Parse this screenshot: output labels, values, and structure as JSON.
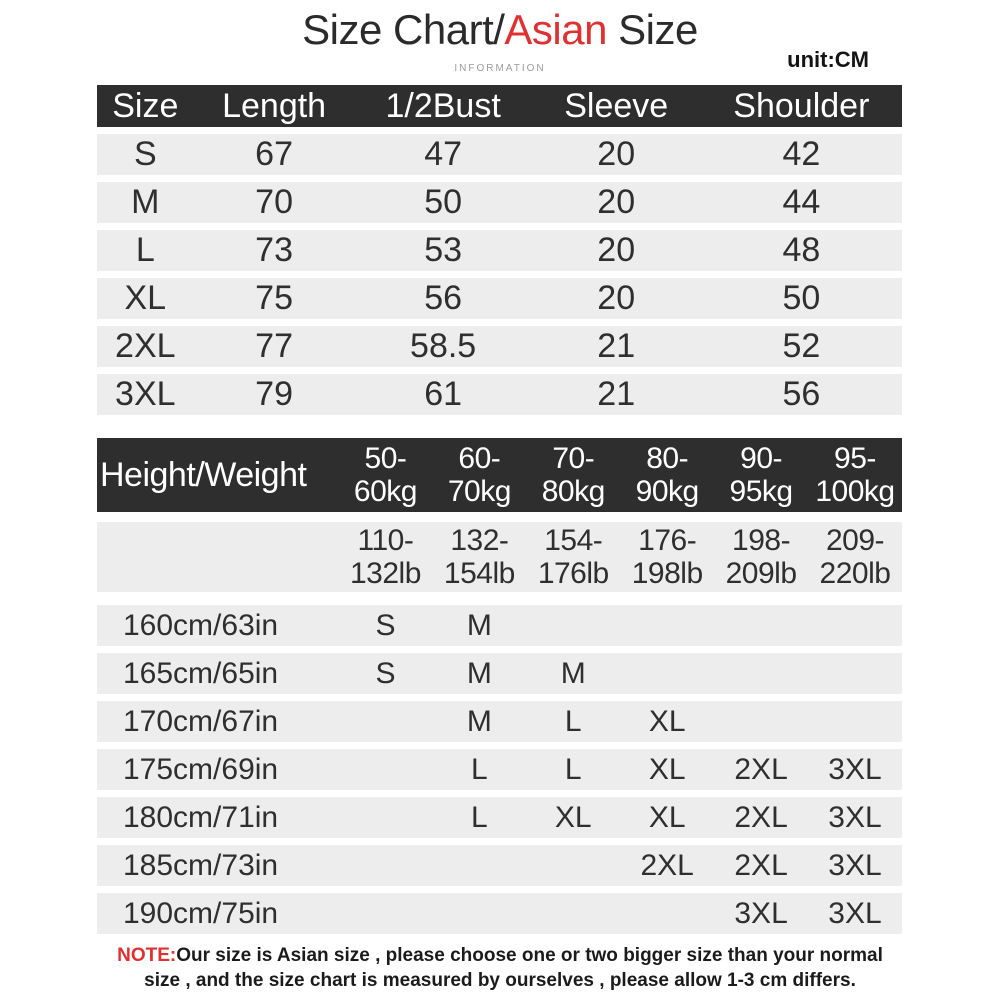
{
  "header": {
    "title_part1": "Size Chart/",
    "title_accent": "Asian",
    "title_part2": " Size",
    "subtitle": "INFORMATION",
    "unit_label": "unit:CM"
  },
  "colors": {
    "accent_red": "#e03030",
    "table_header_bg": "#2e2e2e",
    "row_bg": "#ededed",
    "text_dark": "#2f2f2f"
  },
  "size_table": {
    "headers": [
      "Size",
      "Length",
      "1/2Bust",
      "Sleeve",
      "Shoulder"
    ],
    "rows": [
      [
        "S",
        "67",
        "47",
        "20",
        "42"
      ],
      [
        "M",
        "70",
        "50",
        "20",
        "44"
      ],
      [
        "L",
        "73",
        "53",
        "20",
        "48"
      ],
      [
        "XL",
        "75",
        "56",
        "20",
        "50"
      ],
      [
        "2XL",
        "77",
        "58.5",
        "21",
        "52"
      ],
      [
        "3XL",
        "79",
        "61",
        "21",
        "56"
      ]
    ]
  },
  "fit_table": {
    "corner_label": "Height/Weight",
    "weight_cols": [
      {
        "kg1": "50-",
        "kg2": "60kg",
        "lb1": "110-",
        "lb2": "132lb"
      },
      {
        "kg1": "60-",
        "kg2": "70kg",
        "lb1": "132-",
        "lb2": "154lb"
      },
      {
        "kg1": "70-",
        "kg2": "80kg",
        "lb1": "154-",
        "lb2": "176lb"
      },
      {
        "kg1": "80-",
        "kg2": "90kg",
        "lb1": "176-",
        "lb2": "198lb"
      },
      {
        "kg1": "90-",
        "kg2": "95kg",
        "lb1": "198-",
        "lb2": "209lb"
      },
      {
        "kg1": "95-",
        "kg2": "100kg",
        "lb1": "209-",
        "lb2": "220lb"
      }
    ],
    "rows": [
      {
        "height": "160cm/63in",
        "cells": [
          "S",
          "M",
          "",
          "",
          "",
          ""
        ]
      },
      {
        "height": "165cm/65in",
        "cells": [
          "S",
          "M",
          "M",
          "",
          "",
          ""
        ]
      },
      {
        "height": "170cm/67in",
        "cells": [
          "",
          "M",
          "L",
          "XL",
          "",
          ""
        ]
      },
      {
        "height": "175cm/69in",
        "cells": [
          "",
          "L",
          "L",
          "XL",
          "2XL",
          "3XL"
        ]
      },
      {
        "height": "180cm/71in",
        "cells": [
          "",
          "L",
          "XL",
          "XL",
          "2XL",
          "3XL"
        ]
      },
      {
        "height": "185cm/73in",
        "cells": [
          "",
          "",
          "",
          "2XL",
          "2XL",
          "3XL"
        ]
      },
      {
        "height": "190cm/75in",
        "cells": [
          "",
          "",
          "",
          "",
          "3XL",
          "3XL"
        ]
      }
    ]
  },
  "note": {
    "label": "NOTE:",
    "line1": "Our size is Asian size , please choose one or two bigger size than your normal",
    "line2": "size , and the size chart is measured by ourselves , please allow 1-3 cm differs."
  },
  "chart_data": [
    {
      "type": "table",
      "title": "Size Chart/Asian Size",
      "unit": "CM",
      "columns": [
        "Size",
        "Length",
        "1/2Bust",
        "Sleeve",
        "Shoulder"
      ],
      "rows": [
        [
          "S",
          67,
          47,
          20,
          42
        ],
        [
          "M",
          70,
          50,
          20,
          44
        ],
        [
          "L",
          73,
          53,
          20,
          48
        ],
        [
          "XL",
          75,
          56,
          20,
          50
        ],
        [
          "2XL",
          77,
          58.5,
          21,
          52
        ],
        [
          "3XL",
          79,
          61,
          21,
          56
        ]
      ]
    },
    {
      "type": "table",
      "title": "Height/Weight",
      "columns": [
        "Height/Weight",
        "50-60kg (110-132lb)",
        "60-70kg (132-154lb)",
        "70-80kg (154-176lb)",
        "80-90kg (176-198lb)",
        "90-95kg (198-209lb)",
        "95-100kg (209-220lb)"
      ],
      "rows": [
        [
          "160cm/63in",
          "S",
          "M",
          "",
          "",
          "",
          ""
        ],
        [
          "165cm/65in",
          "S",
          "M",
          "M",
          "",
          "",
          ""
        ],
        [
          "170cm/67in",
          "",
          "M",
          "L",
          "XL",
          "",
          ""
        ],
        [
          "175cm/69in",
          "",
          "L",
          "L",
          "XL",
          "2XL",
          "3XL"
        ],
        [
          "180cm/71in",
          "",
          "L",
          "XL",
          "XL",
          "2XL",
          "3XL"
        ],
        [
          "185cm/73in",
          "",
          "",
          "",
          "2XL",
          "2XL",
          "3XL"
        ],
        [
          "190cm/75in",
          "",
          "",
          "",
          "",
          "3XL",
          "3XL"
        ]
      ]
    }
  ]
}
